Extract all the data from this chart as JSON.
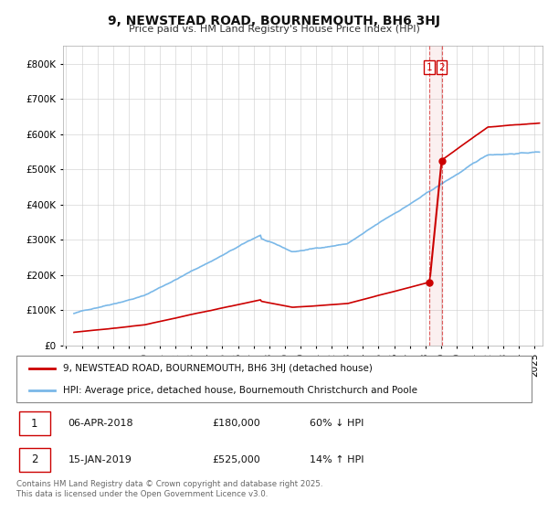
{
  "title": "9, NEWSTEAD ROAD, BOURNEMOUTH, BH6 3HJ",
  "subtitle": "Price paid vs. HM Land Registry's House Price Index (HPI)",
  "ylabel_ticks": [
    "£0",
    "£100K",
    "£200K",
    "£300K",
    "£400K",
    "£500K",
    "£600K",
    "£700K",
    "£800K"
  ],
  "ytick_values": [
    0,
    100000,
    200000,
    300000,
    400000,
    500000,
    600000,
    700000,
    800000
  ],
  "ylim": [
    0,
    850000
  ],
  "hpi_color": "#7ab8e8",
  "price_color": "#cc0000",
  "marker1_year": 2018.27,
  "marker1_price": 180000,
  "marker2_year": 2019.04,
  "marker2_price": 525000,
  "legend1_label": "9, NEWSTEAD ROAD, BOURNEMOUTH, BH6 3HJ (detached house)",
  "legend2_label": "HPI: Average price, detached house, Bournemouth Christchurch and Poole",
  "table_row1": [
    "1",
    "06-APR-2018",
    "£180,000",
    "60% ↓ HPI"
  ],
  "table_row2": [
    "2",
    "15-JAN-2019",
    "£525,000",
    "14% ↑ HPI"
  ],
  "footer": "Contains HM Land Registry data © Crown copyright and database right 2025.\nThis data is licensed under the Open Government Licence v3.0.",
  "background_color": "#ffffff",
  "grid_color": "#cccccc"
}
